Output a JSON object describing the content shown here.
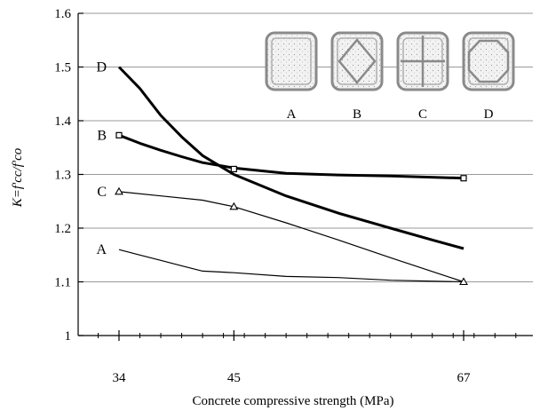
{
  "chart_data": {
    "type": "line",
    "title": "",
    "xlabel": "Concrete compressive strength (MPa)",
    "ylabel": "K=f'cc/f'co",
    "xlim": [
      28,
      75
    ],
    "ylim": [
      1.0,
      1.6
    ],
    "x_ticks": [
      "34",
      "45",
      "67"
    ],
    "y_ticks": [
      "1",
      "1.1",
      "1.2",
      "1.3",
      "1.4",
      "1.5",
      "1.6"
    ],
    "grid": "horizontal",
    "series": [
      {
        "name": "A",
        "marker": "none",
        "points": [
          [
            34,
            1.16
          ],
          [
            36,
            1.15
          ],
          [
            38,
            1.14
          ],
          [
            40,
            1.13
          ],
          [
            42,
            1.12
          ],
          [
            45,
            1.117
          ],
          [
            50,
            1.11
          ],
          [
            55,
            1.108
          ],
          [
            60,
            1.103
          ],
          [
            67,
            1.1
          ]
        ]
      },
      {
        "name": "B",
        "marker": "square",
        "markers": [
          [
            34,
            1.373
          ],
          [
            45,
            1.31
          ],
          [
            67,
            1.293
          ]
        ],
        "points": [
          [
            34,
            1.373
          ],
          [
            36,
            1.358
          ],
          [
            38,
            1.345
          ],
          [
            40,
            1.333
          ],
          [
            42,
            1.322
          ],
          [
            45,
            1.312
          ],
          [
            50,
            1.302
          ],
          [
            55,
            1.299
          ],
          [
            60,
            1.297
          ],
          [
            67,
            1.293
          ]
        ]
      },
      {
        "name": "C",
        "marker": "triangle",
        "markers": [
          [
            34,
            1.268
          ],
          [
            45,
            1.24
          ],
          [
            67,
            1.1
          ]
        ],
        "points": [
          [
            34,
            1.268
          ],
          [
            38,
            1.26
          ],
          [
            42,
            1.252
          ],
          [
            45,
            1.24
          ],
          [
            50,
            1.21
          ],
          [
            55,
            1.178
          ],
          [
            60,
            1.145
          ],
          [
            67,
            1.1
          ]
        ]
      },
      {
        "name": "D",
        "marker": "none",
        "points": [
          [
            34,
            1.5
          ],
          [
            36,
            1.46
          ],
          [
            38,
            1.41
          ],
          [
            40,
            1.37
          ],
          [
            42,
            1.335
          ],
          [
            45,
            1.3
          ],
          [
            50,
            1.26
          ],
          [
            55,
            1.228
          ],
          [
            60,
            1.2
          ],
          [
            64,
            1.178
          ],
          [
            67,
            1.162
          ]
        ]
      }
    ],
    "inset_section_labels": [
      "A",
      "B",
      "C",
      "D"
    ]
  }
}
